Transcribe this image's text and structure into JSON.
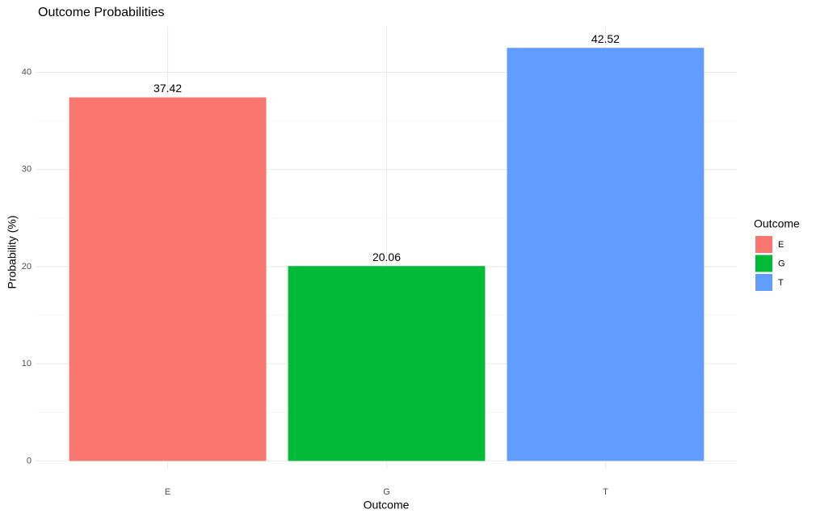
{
  "chart_data": {
    "type": "bar",
    "title": "Outcome Probabilities",
    "x_label": "Outcome",
    "y_label": "Probability (%)",
    "legend_title": "Outcome",
    "categories": [
      "E",
      "G",
      "T"
    ],
    "values": [
      37.42,
      20.06,
      42.52
    ],
    "value_labels": [
      "37.42",
      "20.06",
      "42.52"
    ],
    "colors": [
      "#F8766D",
      "#00BA38",
      "#619CFF"
    ],
    "ylim": [
      -0.8,
      44.7
    ],
    "yticks": [
      0,
      10,
      20,
      30,
      40
    ],
    "grid": true,
    "legend_position": "right"
  }
}
